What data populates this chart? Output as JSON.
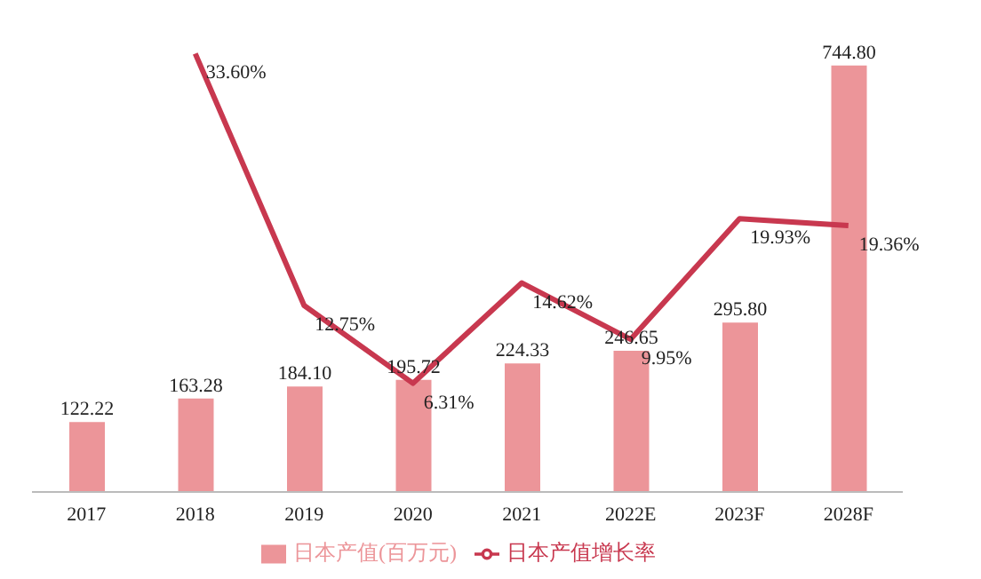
{
  "chart_data": {
    "type": "bar",
    "categories": [
      "2017",
      "2018",
      "2019",
      "2020",
      "2021",
      "2022E",
      "2023F",
      "2028F"
    ],
    "series": [
      {
        "name": "日本产值(百万元)",
        "color": "#ec9599",
        "values": [
          122.22,
          163.28,
          184.1,
          195.72,
          224.33,
          246.65,
          295.8,
          744.8
        ],
        "value_labels": [
          "122.22",
          "163.28",
          "184.10",
          "195.72",
          "224.33",
          "246.65",
          "295.80",
          "744.80"
        ]
      },
      {
        "name": "日本产值增长率",
        "type": "line",
        "axis": "y2",
        "color": "#c8384f",
        "values": [
          null,
          33.6,
          12.75,
          6.31,
          14.62,
          9.95,
          19.93,
          19.36
        ],
        "value_labels": [
          null,
          "33.60%",
          "12.75%",
          "6.31%",
          "14.62%",
          "9.95%",
          "19.93%",
          "19.36%"
        ]
      }
    ],
    "tick_labels": "x",
    "legend": "bottom",
    "grid": false,
    "marker": "none",
    "line_style": "solid"
  }
}
